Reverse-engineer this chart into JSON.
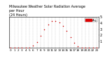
{
  "title": "Milwaukee Weather Solar Radiation Average\nper Hour\n(24 Hours)",
  "hours": [
    0,
    1,
    2,
    3,
    4,
    5,
    6,
    7,
    8,
    9,
    10,
    11,
    12,
    13,
    14,
    15,
    16,
    17,
    18,
    19,
    20,
    21,
    22,
    23
  ],
  "values": [
    0,
    0,
    0,
    0,
    0,
    2,
    28,
    95,
    190,
    295,
    380,
    430,
    440,
    410,
    350,
    270,
    170,
    80,
    20,
    3,
    0,
    0,
    0,
    0
  ],
  "dot_color": "#cc0000",
  "dot_size": 1.2,
  "bg_color": "#ffffff",
  "grid_color": "#aaaaaa",
  "ylim": [
    0,
    500
  ],
  "ytick_vals": [
    100,
    200,
    300,
    400,
    500
  ],
  "ytick_labels": [
    "1",
    "2",
    "3",
    "4",
    "5"
  ],
  "ylabel_fontsize": 3.5,
  "xlabel_fontsize": 3.0,
  "title_fontsize": 3.5,
  "legend_label": "Avg",
  "legend_color": "#dd0000"
}
